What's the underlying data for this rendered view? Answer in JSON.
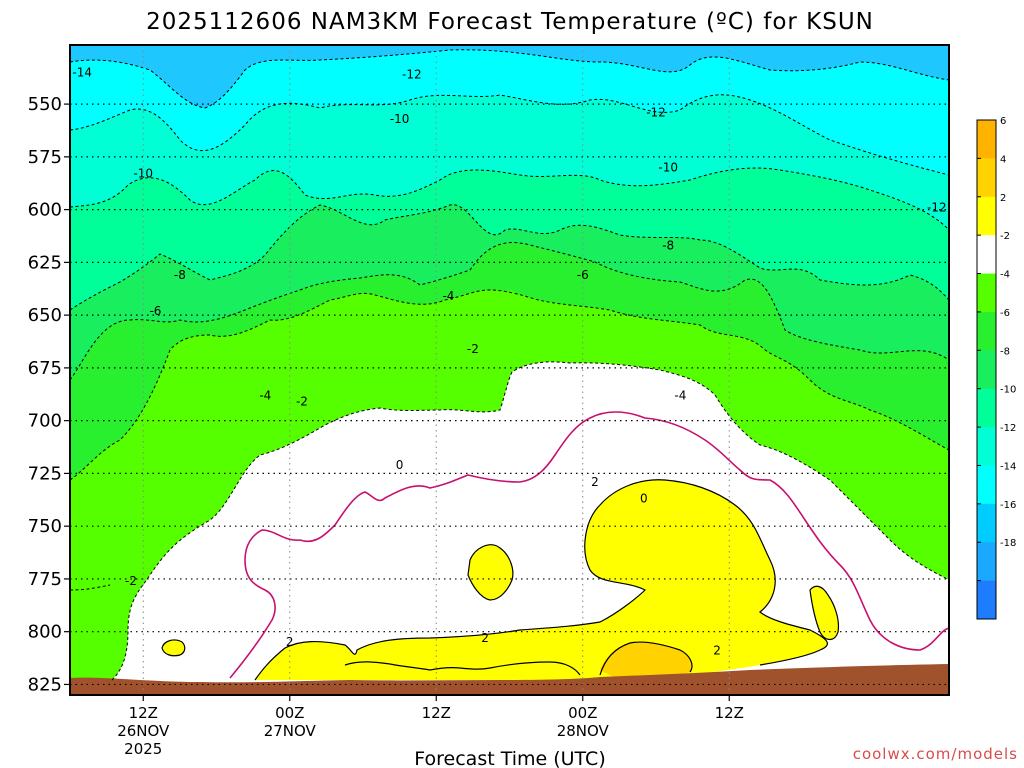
{
  "chart_data": {
    "type": "contour",
    "title": "2025112606 NAM3KM Forecast Temperature (ºC) for KSUN",
    "xlabel": "Forecast Time (UTC)",
    "credit": "coolwx.com/models",
    "y_axis": {
      "quantity": "pressure (hPa)",
      "inverted": true,
      "range": [
        830,
        522
      ],
      "ticks": [
        550,
        575,
        600,
        625,
        650,
        675,
        700,
        725,
        750,
        775,
        800,
        825
      ]
    },
    "x_axis": {
      "range": [
        "2025-11-26T06Z",
        "2025-11-29T06Z"
      ],
      "ticks": [
        {
          "time": "2025-11-26T12Z",
          "line1": "12Z",
          "line2": "26NOV",
          "line3": "2025"
        },
        {
          "time": "2025-11-27T00Z",
          "line1": "00Z",
          "line2": "27NOV",
          "line3": ""
        },
        {
          "time": "2025-11-27T12Z",
          "line1": "12Z",
          "line2": "",
          "line3": ""
        },
        {
          "time": "2025-11-28T00Z",
          "line1": "00Z",
          "line2": "28NOV",
          "line3": ""
        },
        {
          "time": "2025-11-28T12Z",
          "line1": "12Z",
          "line2": "",
          "line3": ""
        }
      ]
    },
    "grid": true,
    "contour_labels": [
      {
        "text": "-14",
        "time": "2025-11-26T07Z",
        "p": 535
      },
      {
        "text": "-12",
        "time": "2025-11-27T10Z",
        "p": 536
      },
      {
        "text": "-12",
        "time": "2025-11-28T06Z",
        "p": 554
      },
      {
        "text": "-12",
        "time": "2025-11-29T05Z",
        "p": 599
      },
      {
        "text": "-10",
        "time": "2025-11-26T12Z",
        "p": 583
      },
      {
        "text": "-10",
        "time": "2025-11-27T09Z",
        "p": 557
      },
      {
        "text": "-10",
        "time": "2025-11-28T07Z",
        "p": 580
      },
      {
        "text": "-8",
        "time": "2025-11-26T15Z",
        "p": 631
      },
      {
        "text": "-8",
        "time": "2025-11-28T07Z",
        "p": 617
      },
      {
        "text": "-6",
        "time": "2025-11-26T13Z",
        "p": 648
      },
      {
        "text": "-6",
        "time": "2025-11-28T00Z",
        "p": 631
      },
      {
        "text": "-4",
        "time": "2025-11-26T22Z",
        "p": 688
      },
      {
        "text": "-4",
        "time": "2025-11-27T13Z",
        "p": 641
      },
      {
        "text": "-4",
        "time": "2025-11-28T08Z",
        "p": 688
      },
      {
        "text": "-2",
        "time": "2025-11-27T01Z",
        "p": 691
      },
      {
        "text": "-2",
        "time": "2025-11-27T15Z",
        "p": 666
      },
      {
        "text": "-2",
        "time": "2025-11-26T11Z",
        "p": 776
      },
      {
        "text": "0",
        "time": "2025-11-27T09Z",
        "p": 721
      },
      {
        "text": "0",
        "time": "2025-11-28T05Z",
        "p": 737
      },
      {
        "text": "2",
        "time": "2025-11-27T00Z",
        "p": 805
      },
      {
        "text": "2",
        "time": "2025-11-27T16Z",
        "p": 803
      },
      {
        "text": "2",
        "time": "2025-11-28T01Z",
        "p": 729
      },
      {
        "text": "2",
        "time": "2025-11-28T11Z",
        "p": 809
      }
    ],
    "colorbar": {
      "ticks": [
        "6",
        "4",
        "2",
        "-2",
        "-4",
        "-6",
        "-8",
        "-10",
        "-12",
        "-14",
        "-16",
        "-18"
      ],
      "colors": [
        "#ffb300",
        "#ffd200",
        "#ffff00",
        "#ffffff",
        "#55ff00",
        "#29f02e",
        "#18ee5e",
        "#00ff99",
        "#00ffd5",
        "#00ffff",
        "#00ccff",
        "#1ba8ff",
        "#1e7dff"
      ]
    },
    "ground_color": "#a0522d"
  }
}
